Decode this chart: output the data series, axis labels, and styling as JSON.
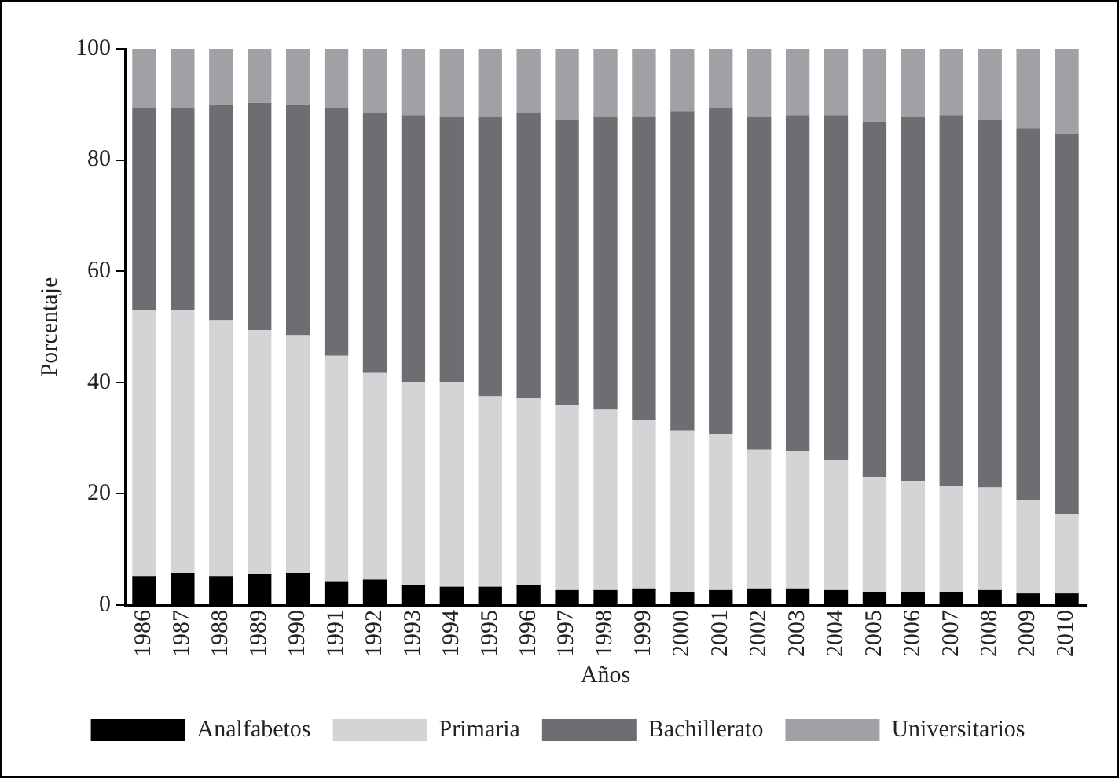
{
  "chart_data": {
    "type": "bar",
    "stacked": true,
    "xlabel": "Años",
    "ylabel": "Porcentaje",
    "categories": [
      "1986",
      "1987",
      "1988",
      "1989",
      "1990",
      "1991",
      "1992",
      "1993",
      "1994",
      "1995",
      "1996",
      "1997",
      "1998",
      "1999",
      "2000",
      "2001",
      "2002",
      "2003",
      "2004",
      "2005",
      "2006",
      "2007",
      "2008",
      "2009",
      "2010"
    ],
    "series": [
      {
        "name": "Analfabetos",
        "color": "#000000",
        "values": [
          5.2,
          5.8,
          5.2,
          5.5,
          5.8,
          4.3,
          4.6,
          3.6,
          3.3,
          3.3,
          3.6,
          2.7,
          2.7,
          3.0,
          2.4,
          2.7,
          3.0,
          3.0,
          2.7,
          2.4,
          2.4,
          2.4,
          2.7,
          2.1,
          2.1
        ]
      },
      {
        "name": "Primaria",
        "color": "#d4d4d6",
        "values": [
          47.9,
          47.3,
          46.0,
          43.9,
          42.7,
          40.5,
          37.1,
          36.5,
          36.8,
          34.2,
          33.7,
          33.3,
          32.4,
          30.3,
          29.0,
          28.1,
          25.0,
          24.7,
          23.4,
          20.6,
          19.9,
          19.0,
          18.4,
          16.8,
          14.3
        ]
      },
      {
        "name": "Bachillerato",
        "color": "#6d6e71",
        "values": [
          36.3,
          36.3,
          38.8,
          40.9,
          41.5,
          44.6,
          46.8,
          48.0,
          47.7,
          50.3,
          51.2,
          51.2,
          52.7,
          54.5,
          57.4,
          58.6,
          59.8,
          60.4,
          62.0,
          63.9,
          65.5,
          66.7,
          66.1,
          66.8,
          68.3
        ]
      },
      {
        "name": "Universitarios",
        "color": "#a0a1a4",
        "values": [
          10.6,
          10.6,
          10.0,
          9.7,
          10.0,
          10.6,
          11.5,
          11.9,
          12.2,
          12.2,
          11.5,
          12.8,
          12.2,
          12.2,
          11.2,
          10.6,
          12.2,
          11.9,
          11.9,
          13.1,
          12.2,
          11.9,
          12.8,
          14.3,
          15.3
        ]
      }
    ],
    "ylim": [
      0,
      100
    ],
    "yticks": [
      0,
      20,
      40,
      60,
      80,
      100
    ],
    "grid": false,
    "legend": "bottom"
  }
}
